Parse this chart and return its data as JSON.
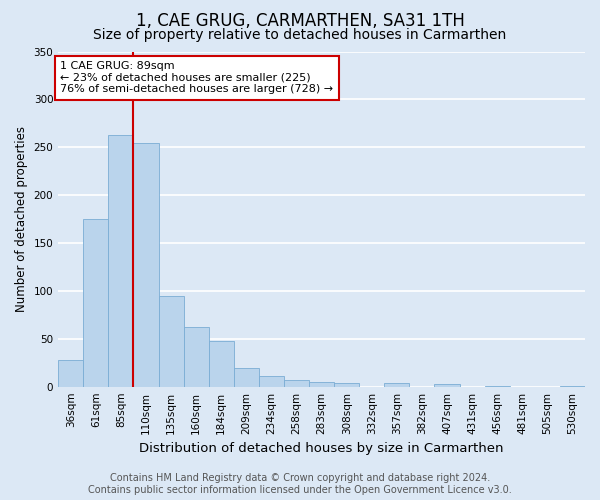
{
  "title": "1, CAE GRUG, CARMARTHEN, SA31 1TH",
  "subtitle": "Size of property relative to detached houses in Carmarthen",
  "xlabel": "Distribution of detached houses by size in Carmarthen",
  "ylabel": "Number of detached properties",
  "bar_labels": [
    "36sqm",
    "61sqm",
    "85sqm",
    "110sqm",
    "135sqm",
    "160sqm",
    "184sqm",
    "209sqm",
    "234sqm",
    "258sqm",
    "283sqm",
    "308sqm",
    "332sqm",
    "357sqm",
    "382sqm",
    "407sqm",
    "431sqm",
    "456sqm",
    "481sqm",
    "505sqm",
    "530sqm"
  ],
  "bar_values": [
    28,
    175,
    263,
    254,
    95,
    62,
    48,
    20,
    11,
    7,
    5,
    4,
    0,
    4,
    0,
    3,
    0,
    1,
    0,
    0,
    1
  ],
  "bar_color": "#bad4ec",
  "bar_edge_color": "#7aadd4",
  "ylim": [
    0,
    350
  ],
  "yticks": [
    0,
    50,
    100,
    150,
    200,
    250,
    300,
    350
  ],
  "vline_color": "#cc0000",
  "vline_index": 2,
  "annotation_title": "1 CAE GRUG: 89sqm",
  "annotation_line1": "← 23% of detached houses are smaller (225)",
  "annotation_line2": "76% of semi-detached houses are larger (728) →",
  "annotation_box_facecolor": "#ffffff",
  "annotation_box_edgecolor": "#cc0000",
  "footer_line1": "Contains HM Land Registry data © Crown copyright and database right 2024.",
  "footer_line2": "Contains public sector information licensed under the Open Government Licence v3.0.",
  "background_color": "#dce8f5",
  "plot_bg_color": "#dce8f5",
  "grid_color": "#ffffff",
  "title_fontsize": 12,
  "subtitle_fontsize": 10,
  "xlabel_fontsize": 9.5,
  "ylabel_fontsize": 8.5,
  "tick_fontsize": 7.5,
  "annotation_fontsize": 8,
  "footer_fontsize": 7
}
